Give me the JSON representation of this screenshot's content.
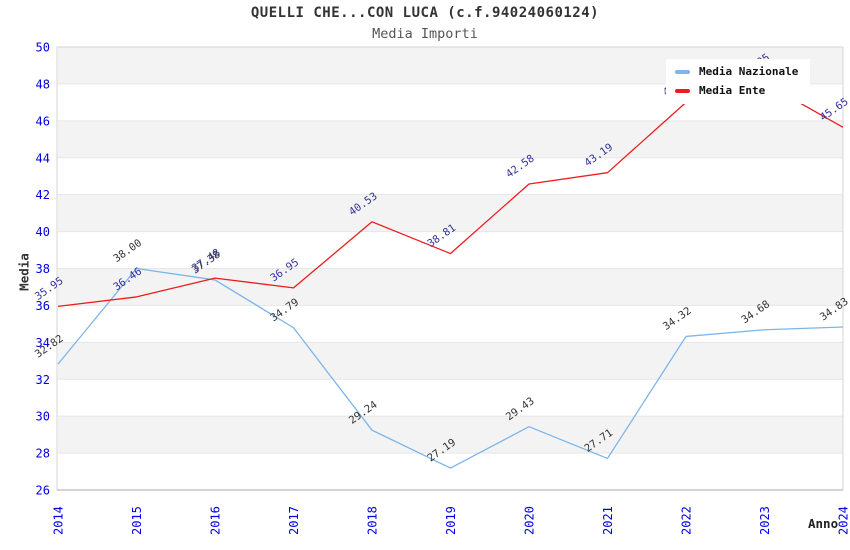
{
  "header": {
    "title": "QUELLI CHE...CON LUCA (c.f.94024060124)",
    "subtitle": "Media Importi"
  },
  "axes": {
    "y_title": "Media",
    "x_title": "Anno",
    "tick_color": "#0000E0"
  },
  "legend": {
    "items": [
      {
        "label": "Media Nazionale",
        "color": "#7CB5EC"
      },
      {
        "label": "Media Ente",
        "color": "#EE1C1C"
      }
    ]
  },
  "chart_data": {
    "type": "line",
    "title": "QUELLI CHE...CON LUCA (c.f.94024060124)",
    "subtitle": "Media Importi",
    "xlabel": "Anno",
    "ylabel": "Media",
    "x": [
      2014,
      2015,
      2016,
      2017,
      2018,
      2019,
      2020,
      2021,
      2022,
      2023,
      2024
    ],
    "x_tick_labels": [
      "2014",
      "2015",
      "2016",
      "2017",
      "2018",
      "2019",
      "2020",
      "2021",
      "2022",
      "2023",
      "2024"
    ],
    "y_tick_labels": [
      "26",
      "28",
      "30",
      "32",
      "34",
      "36",
      "38",
      "40",
      "42",
      "44",
      "46",
      "48",
      "50"
    ],
    "ylim": [
      26,
      50
    ],
    "ytick_step": 2,
    "grid": "alternating-bands",
    "legend_position": "top-right",
    "series": [
      {
        "name": "Media Nazionale",
        "color": "#7CB5EC",
        "label_color": "#333333",
        "values": [
          32.82,
          38.0,
          37.38,
          34.79,
          29.24,
          27.19,
          29.43,
          27.71,
          34.32,
          34.68,
          34.83
        ],
        "labels": [
          "32.82",
          "38.00",
          "37.38",
          "34.79",
          "29.24",
          "27.19",
          "29.43",
          "27.71",
          "34.32",
          "34.68",
          "34.83"
        ]
      },
      {
        "name": "Media Ente",
        "color": "#EE1C1C",
        "label_color": "#333399",
        "values": [
          35.95,
          36.46,
          37.48,
          36.95,
          40.53,
          38.81,
          42.58,
          43.19,
          47.0,
          48.05,
          45.65
        ],
        "labels": [
          "35.95",
          "36.46",
          "37.48",
          "36.95",
          "40.53",
          "38.81",
          "42.58",
          "43.19",
          "47.00",
          "48.05",
          "45.65"
        ],
        "labels_hidden_by_legend": [
          2022,
          2023
        ]
      }
    ]
  }
}
